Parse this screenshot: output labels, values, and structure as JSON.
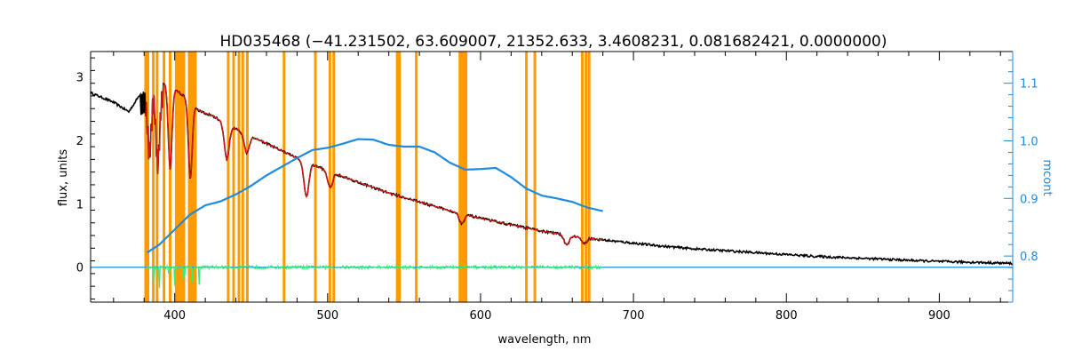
{
  "chart_data": {
    "type": "line",
    "title": "HD035468   (−41.231502, 63.609007, 21352.633, 3.4608231, 0.081682421, 0.0000000)",
    "xlabel": "wavelength, nm",
    "ylabel": "flux, units",
    "y2label": "mcont",
    "xlim": [
      345,
      948
    ],
    "ylim": [
      -0.55,
      3.4
    ],
    "y2lim": [
      0.72,
      1.155
    ],
    "xticks": [
      400,
      500,
      600,
      700,
      800,
      900
    ],
    "yticks": [
      0,
      1,
      2,
      3
    ],
    "y2ticks": [
      0.8,
      0.9,
      1.0,
      1.1
    ],
    "y2ticklabels": [
      "0.8",
      "0.9",
      "1.0",
      "1.1"
    ],
    "colors": {
      "observed": "#000000",
      "model": "#e0140f",
      "residual": "#33ee77",
      "mcont": "#1e8be0",
      "mask": "#ff9a00",
      "axes": "#000000",
      "right_axis": "#1e8be0"
    },
    "observed_continuum": {
      "x": [
        345,
        360,
        370,
        378,
        385,
        395,
        405,
        415,
        425,
        440,
        460,
        480,
        500,
        520,
        540,
        560,
        580,
        600,
        620,
        640,
        660,
        680,
        700,
        720,
        740,
        760,
        780,
        800,
        820,
        840,
        860,
        880,
        900,
        920,
        948
      ],
      "y": [
        2.75,
        2.6,
        2.45,
        2.75,
        2.93,
        2.88,
        2.72,
        2.48,
        2.38,
        2.18,
        1.95,
        1.72,
        1.52,
        1.34,
        1.17,
        1.03,
        0.89,
        0.77,
        0.67,
        0.57,
        0.49,
        0.43,
        0.38,
        0.33,
        0.29,
        0.26,
        0.23,
        0.2,
        0.17,
        0.15,
        0.13,
        0.11,
        0.09,
        0.08,
        0.06
      ]
    },
    "absorption_lines": {
      "x": [
        383.5,
        388.9,
        397.0,
        410.2,
        434.0,
        447.1,
        486.1,
        501.6,
        587.6,
        656.3,
        667.8
      ],
      "depth": [
        0.9,
        1.1,
        1.3,
        1.2,
        0.55,
        0.3,
        0.55,
        0.25,
        0.15,
        0.15,
        0.1
      ]
    },
    "mcont": {
      "x": [
        382,
        390,
        400,
        410,
        420,
        430,
        440,
        450,
        460,
        470,
        480,
        490,
        500,
        510,
        520,
        530,
        540,
        550,
        560,
        570,
        580,
        590,
        600,
        610,
        620,
        630,
        640,
        650,
        660,
        670,
        680
      ],
      "y": [
        0.806,
        0.82,
        0.846,
        0.872,
        0.888,
        0.895,
        0.907,
        0.922,
        0.94,
        0.955,
        0.97,
        0.984,
        0.988,
        0.995,
        1.003,
        1.002,
        0.993,
        0.99,
        0.99,
        0.98,
        0.962,
        0.95,
        0.951,
        0.953,
        0.937,
        0.917,
        0.905,
        0.9,
        0.894,
        0.884,
        0.878
      ]
    },
    "mask_lines": {
      "x": [
        381,
        382.5,
        386,
        388.5,
        393,
        397,
        401,
        402.5,
        403.5,
        405,
        406,
        409.5,
        410.5,
        412,
        413.5,
        435,
        438.5,
        442,
        444.5,
        447.5,
        471.5,
        492,
        501.5,
        504,
        545.5,
        547,
        558,
        586.5,
        588,
        589.5,
        590.5,
        630,
        635.5,
        666.5,
        669,
        671
      ]
    }
  }
}
